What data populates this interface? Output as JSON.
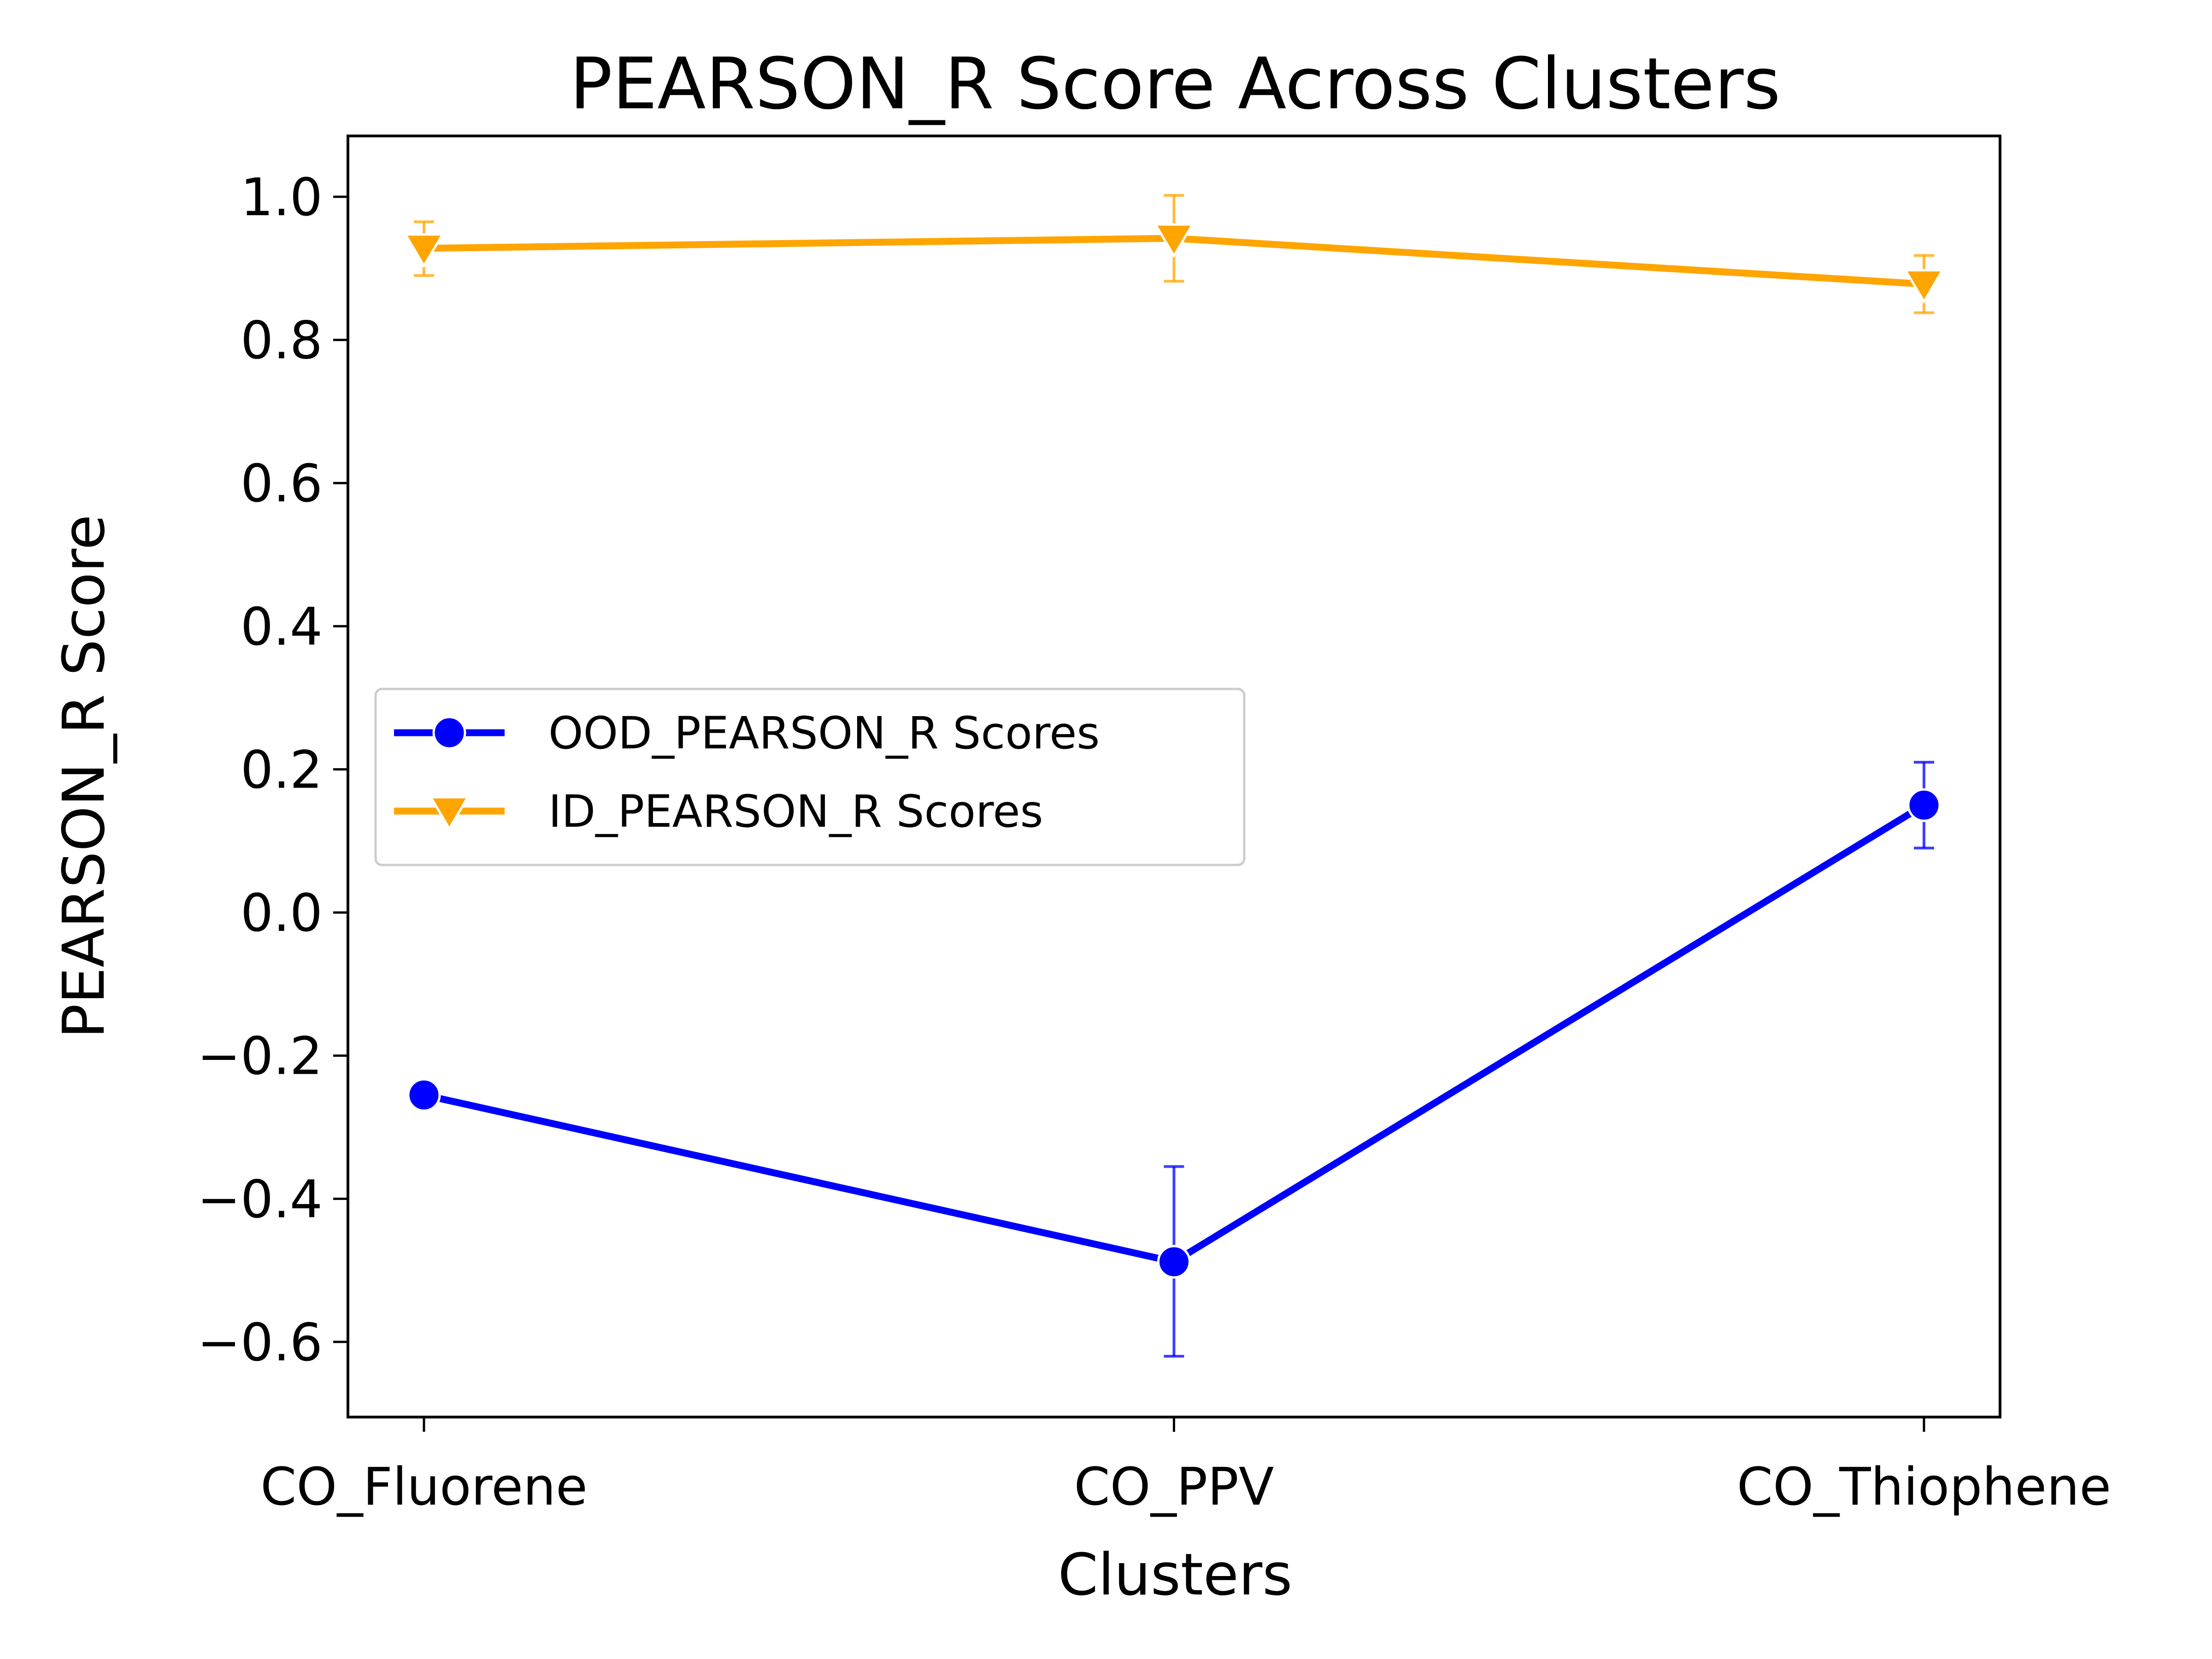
{
  "chart_data": {
    "type": "line",
    "title": "PEARSON_R Score Across Clusters",
    "xlabel": "Clusters",
    "ylabel": "PEARSON_R Score",
    "categories": [
      "CO_Fluorene",
      "CO_PPV",
      "CO_Thiophene"
    ],
    "ylim": [
      -0.705,
      1.085
    ],
    "yticks": [
      -0.6,
      -0.4,
      -0.2,
      0.0,
      0.2,
      0.4,
      0.6,
      0.8,
      1.0
    ],
    "ytick_labels": [
      "−0.6",
      "−0.4",
      "−0.2",
      "0.0",
      "0.2",
      "0.4",
      "0.6",
      "0.8",
      "1.0"
    ],
    "grid": false,
    "legend_position": "center-left",
    "series": [
      {
        "name": "OOD_PEARSON_R Scores",
        "color": "#0000ff",
        "marker": "circle",
        "values": [
          -0.255,
          -0.488,
          0.15
        ],
        "err_low": [
          null,
          -0.62,
          0.09
        ],
        "err_high": [
          null,
          -0.355,
          0.21
        ]
      },
      {
        "name": "ID_PEARSON_R Scores",
        "color": "#ffa500",
        "marker": "triangle-down",
        "values": [
          0.928,
          0.942,
          0.878
        ],
        "err_low": [
          0.89,
          0.882,
          0.838
        ],
        "err_high": [
          0.965,
          1.002,
          0.918
        ]
      }
    ]
  }
}
